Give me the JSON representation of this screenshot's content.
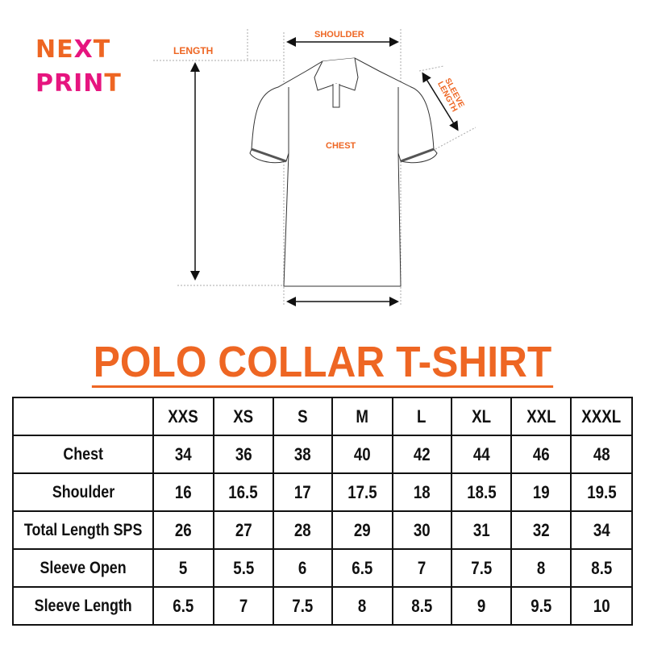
{
  "brand": {
    "line1_a": "N",
    "line1_b": "E",
    "line1_c": "X",
    "line1_d": "T",
    "line2_a": "PRIN",
    "line2_b": "T",
    "colors": {
      "orange": "#ee6623",
      "pink": "#e6157f"
    }
  },
  "diagram": {
    "length": "LENGTH",
    "shoulder": "SHOULDER",
    "sleeve_length_1": "SLEEVE",
    "sleeve_length_2": "LENGTH",
    "chest": "CHEST"
  },
  "title": "POLO COLLAR T-SHIRT",
  "table": {
    "sizes": [
      "XXS",
      "XS",
      "S",
      "M",
      "L",
      "XL",
      "XXL",
      "XXXL"
    ],
    "rows": [
      {
        "label": "Chest",
        "values": [
          "34",
          "36",
          "38",
          "40",
          "42",
          "44",
          "46",
          "48"
        ]
      },
      {
        "label": "Shoulder",
        "values": [
          "16",
          "16.5",
          "17",
          "17.5",
          "18",
          "18.5",
          "19",
          "19.5"
        ]
      },
      {
        "label": "Total Length SPS",
        "values": [
          "26",
          "27",
          "28",
          "29",
          "30",
          "31",
          "32",
          "34"
        ]
      },
      {
        "label": "Sleeve Open",
        "values": [
          "5",
          "5.5",
          "6",
          "6.5",
          "7",
          "7.5",
          "8",
          "8.5"
        ]
      },
      {
        "label": "Sleeve Length",
        "values": [
          "6.5",
          "7",
          "7.5",
          "8",
          "8.5",
          "9",
          "9.5",
          "10"
        ]
      }
    ]
  }
}
